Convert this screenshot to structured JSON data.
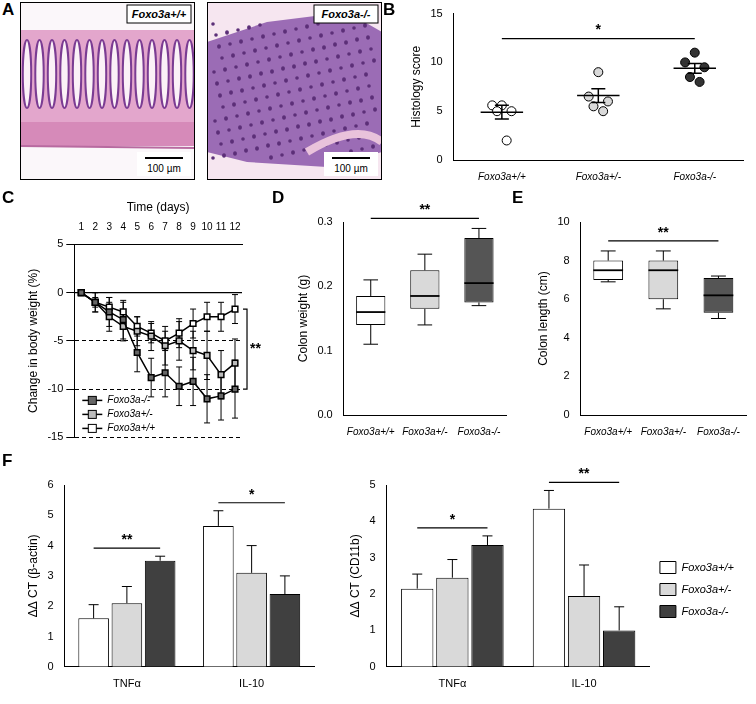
{
  "panel_a": {
    "panel_label": "A",
    "images": [
      {
        "label": "Foxo3a+/+",
        "scale_bar": "100 µm"
      },
      {
        "label": "Foxo3a-/-",
        "scale_bar": "100 µm"
      }
    ]
  },
  "chart_data": [
    {
      "panel_label": "B",
      "type": "scatter",
      "categories": [
        "Foxo3a+/+",
        "Foxo3a+/-",
        "Foxo3a-/-"
      ],
      "y_label": "Histology score",
      "points": [
        [
          5.6,
          5.6,
          5,
          5,
          2
        ],
        [
          9,
          6.5,
          6,
          5.5,
          5
        ],
        [
          11,
          10,
          9.5,
          8.5,
          8
        ]
      ],
      "mean": [
        4.9,
        6.6,
        9.4
      ],
      "sem": [
        0.7,
        0.7,
        0.5
      ],
      "colors": [
        "#ffffff",
        "#d9d9d9",
        "#333333"
      ],
      "marker": "circle",
      "ylim": [
        0,
        15
      ],
      "yticks": [
        0,
        5,
        10,
        15
      ],
      "significance": [
        {
          "from": "Foxo3a+/+",
          "to": "Foxo3a-/-",
          "label": "*"
        }
      ]
    },
    {
      "panel_label": "C",
      "type": "line",
      "x_label": "Time (days)",
      "y_label": "Change in body weight (%)",
      "x": [
        1,
        2,
        3,
        4,
        5,
        6,
        7,
        8,
        9,
        10,
        11,
        12
      ],
      "xlim": [
        0.5,
        12.5
      ],
      "xticks": [
        1,
        2,
        3,
        4,
        5,
        6,
        7,
        8,
        9,
        10,
        11,
        12
      ],
      "ylim": [
        -15,
        5
      ],
      "yticks": [
        -15,
        -10,
        -5,
        0,
        5
      ],
      "grid": true,
      "legend": "lower left",
      "marker": "square",
      "series": [
        {
          "name": "Foxo3a-/-",
          "color": "#666666",
          "values": [
            0,
            -1,
            -2,
            -2.8,
            -6.2,
            -8.8,
            -8.3,
            -9.7,
            -9.2,
            -11,
            -10.7,
            -10
          ],
          "errors": [
            0,
            1,
            1.5,
            2,
            2,
            2,
            2.5,
            2,
            2.5,
            2.5,
            2.5,
            3
          ]
        },
        {
          "name": "Foxo3a+/-",
          "color": "#bbbbbb",
          "values": [
            0,
            -1,
            -2.5,
            -3.5,
            -4,
            -4.5,
            -5.5,
            -5,
            -6,
            -6.5,
            -8.5,
            -7.3
          ],
          "errors": [
            0,
            1,
            1.5,
            1.5,
            1.5,
            1.5,
            2,
            2,
            2,
            2.5,
            2.5,
            2.5
          ]
        },
        {
          "name": "Foxo3a+/+",
          "color": "#ffffff",
          "values": [
            0,
            -1,
            -1.5,
            -2,
            -3.5,
            -4.2,
            -5,
            -4.2,
            -3.2,
            -2.5,
            -2.5,
            -1.7
          ],
          "errors": [
            0,
            0.5,
            1,
            1,
            1,
            1,
            1,
            1.5,
            1.5,
            1.5,
            1.5,
            1.5
          ]
        }
      ],
      "significance": [
        {
          "x": 12,
          "from": "Foxo3a-/-",
          "to": "Foxo3a+/+",
          "label": "**"
        }
      ]
    },
    {
      "panel_label": "D",
      "type": "box",
      "categories": [
        "Foxo3a+/+",
        "Foxo3a+/-",
        "Foxo3a-/-"
      ],
      "y_label": "Colon weight (g)",
      "min": [
        0.11,
        0.14,
        0.17
      ],
      "q1": [
        0.14,
        0.165,
        0.175
      ],
      "median": [
        0.16,
        0.185,
        0.205
      ],
      "q3": [
        0.185,
        0.225,
        0.275
      ],
      "max": [
        0.21,
        0.25,
        0.29
      ],
      "colors": [
        "#ffffff",
        "#d9d9d9",
        "#555555"
      ],
      "ylim": [
        0,
        0.3
      ],
      "yticks": [
        {
          "value": 0,
          "label": "0.0"
        },
        0.1,
        0.2,
        0.3
      ],
      "significance": [
        {
          "from": "Foxo3a+/+",
          "to": "Foxo3a-/-",
          "label": "**"
        }
      ]
    },
    {
      "panel_label": "E",
      "type": "box",
      "categories": [
        "Foxo3a+/+",
        "Foxo3a+/-",
        "Foxo3a-/-"
      ],
      "y_label": "Colon length (cm)",
      "min": [
        6.9,
        5.5,
        5
      ],
      "q1": [
        7,
        6,
        5.3
      ],
      "median": [
        7.5,
        7.5,
        6.2
      ],
      "q3": [
        8,
        8,
        7.1
      ],
      "max": [
        8.5,
        8.5,
        7.2
      ],
      "colors": [
        "#ffffff",
        "#d9d9d9",
        "#555555"
      ],
      "ylim": [
        0,
        10
      ],
      "yticks": [
        0,
        2,
        4,
        6,
        8,
        10
      ],
      "significance": [
        {
          "from": "Foxo3a+/+",
          "to": "Foxo3a-/-",
          "label": "**"
        }
      ]
    },
    {
      "panel_label": "F",
      "type": "bar",
      "categories": [
        "TNFα",
        "IL-10"
      ],
      "y_label": "ΔΔ CT (β-actin)",
      "ylim": [
        0,
        6
      ],
      "yticks": [
        0,
        1,
        2,
        3,
        4,
        5,
        6
      ],
      "series": [
        {
          "name": "Foxo3a+/+",
          "color": "#ffffff",
          "values": [
            1.6,
            4.65
          ],
          "errors": [
            0.45,
            0.5
          ]
        },
        {
          "name": "Foxo3a+/-",
          "color": "#d9d9d9",
          "values": [
            2.1,
            3.1
          ],
          "errors": [
            0.55,
            0.9
          ]
        },
        {
          "name": "Foxo3a-/-",
          "color": "#404040",
          "values": [
            3.5,
            2.4
          ],
          "errors": [
            0.15,
            0.6
          ]
        }
      ],
      "significance": [
        {
          "category": "TNFα",
          "from": "Foxo3a+/+",
          "to": "Foxo3a-/-",
          "label": "**"
        },
        {
          "category": "IL-10",
          "from": "Foxo3a+/+",
          "to": "Foxo3a-/-",
          "label": "*"
        }
      ]
    },
    {
      "type": "bar",
      "categories": [
        "TNFα",
        "IL-10"
      ],
      "y_label": "ΔΔ CT (CD11b)",
      "ylim": [
        0,
        5
      ],
      "yticks": [
        0,
        1,
        2,
        3,
        4,
        5
      ],
      "legend": "right",
      "series": [
        {
          "name": "Foxo3a+/+",
          "color": "#ffffff",
          "values": [
            2.15,
            4.35
          ],
          "errors": [
            0.4,
            0.5
          ]
        },
        {
          "name": "Foxo3a+/-",
          "color": "#d9d9d9",
          "values": [
            2.45,
            1.95
          ],
          "errors": [
            0.5,
            0.85
          ]
        },
        {
          "name": "Foxo3a-/-",
          "color": "#404040",
          "values": [
            3.35,
            1.0
          ],
          "errors": [
            0.25,
            0.65
          ]
        }
      ],
      "significance": [
        {
          "category": "TNFα",
          "from": "Foxo3a+/+",
          "to": "Foxo3a-/-",
          "label": "*"
        },
        {
          "category": "IL-10",
          "from": "Foxo3a+/+",
          "to": "Foxo3a-/-",
          "label": "**"
        }
      ]
    }
  ]
}
